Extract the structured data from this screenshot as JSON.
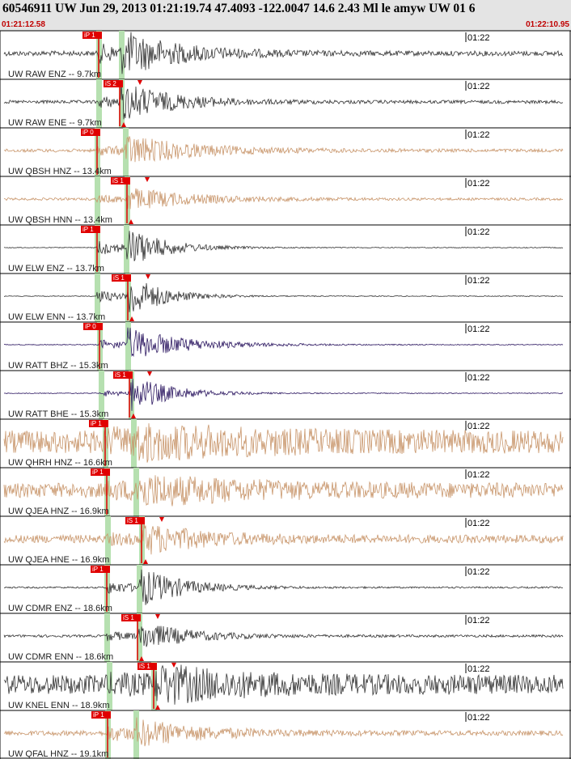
{
  "header": {
    "title": "60546911 UW Jun 29, 2013 01:21:19.74   47.4093 -122.0047 14.6 2.43 Ml le amyw UW 01   6",
    "start_time": "01:21:12.58",
    "end_time": "01:22:10.95"
  },
  "tick_label": "01:22",
  "traces": [
    {
      "label": "UW RAW ENZ -- 9.7km",
      "pick": "iP 1"
    },
    {
      "label": "UW RAW ENE -- 9.7km",
      "pick": "iS 2"
    },
    {
      "label": "UW QBSH HNZ -- 13.4km",
      "pick": "iP 0"
    },
    {
      "label": "UW QBSH HNN -- 13.4km",
      "pick": "iS 1"
    },
    {
      "label": "UW ELW ENZ -- 13.7km",
      "pick": "iP 1"
    },
    {
      "label": "UW ELW ENN -- 13.7km",
      "pick": "iS 1"
    },
    {
      "label": "UW RATT BHZ -- 15.3km",
      "pick": "iP 0"
    },
    {
      "label": "UW RATT BHE -- 15.3km",
      "pick": "iS 1"
    },
    {
      "label": "UW QHRH HNZ -- 16.6km",
      "pick": "iP 1"
    },
    {
      "label": "UW QJEA HNZ -- 16.9km",
      "pick": "iP 1"
    },
    {
      "label": "UW QJEA HNE -- 16.9km",
      "pick": "iS 1"
    },
    {
      "label": "UW CDMR ENZ -- 18.6km",
      "pick": "iP 1"
    },
    {
      "label": "UW CDMR ENN -- 18.6km",
      "pick": "iS 1"
    },
    {
      "label": "UW KNEL ENN -- 18.9km",
      "pick": "iS 1"
    },
    {
      "label": "UW QFAL HNZ -- 19.1km",
      "pick": "iP 1"
    }
  ]
}
